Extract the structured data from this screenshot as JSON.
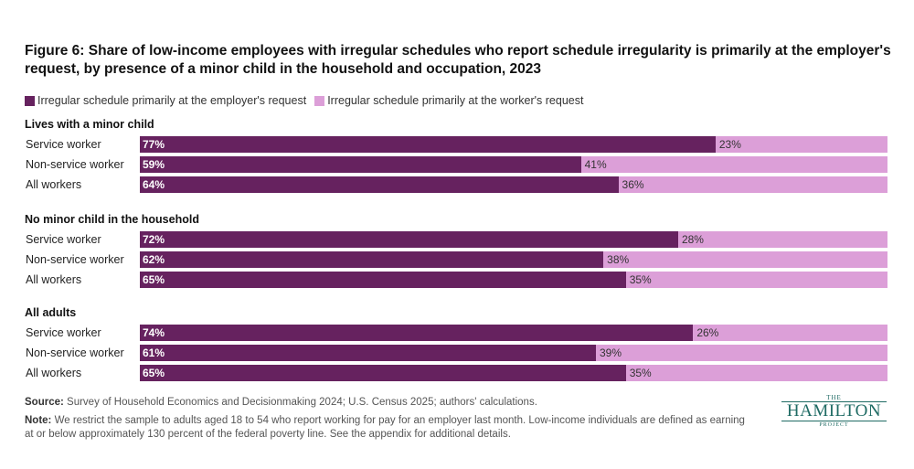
{
  "title": "Figure 6: Share of low-income employees with irregular schedules who report schedule irregularity is primarily at the employer's request, by presence of a minor child in the household and occupation, 2023",
  "legend": {
    "employer": "Irregular schedule primarily at the employer's request",
    "worker": "Irregular schedule primarily at the worker's request"
  },
  "colors": {
    "employer": "#66225f",
    "worker": "#dc9fd8"
  },
  "chart_data": {
    "type": "bar",
    "orientation": "horizontal-stacked-100",
    "series": [
      {
        "name": "Irregular schedule primarily at the employer's request"
      },
      {
        "name": "Irregular schedule primarily at the worker's request"
      }
    ],
    "groups": [
      {
        "title": "Lives with a minor child",
        "rows": [
          {
            "label": "Service worker",
            "employer": 77,
            "worker": 23,
            "employer_label": "77%",
            "worker_label": "23%"
          },
          {
            "label": "Non-service worker",
            "employer": 59,
            "worker": 41,
            "employer_label": "59%",
            "worker_label": "41%"
          },
          {
            "label": "All workers",
            "employer": 64,
            "worker": 36,
            "employer_label": "64%",
            "worker_label": "36%"
          }
        ]
      },
      {
        "title": "No minor child in the household",
        "rows": [
          {
            "label": "Service worker",
            "employer": 72,
            "worker": 28,
            "employer_label": "72%",
            "worker_label": "28%"
          },
          {
            "label": "Non-service worker",
            "employer": 62,
            "worker": 38,
            "employer_label": "62%",
            "worker_label": "38%"
          },
          {
            "label": "All workers",
            "employer": 65,
            "worker": 35,
            "employer_label": "65%",
            "worker_label": "35%"
          }
        ]
      },
      {
        "title": "All adults",
        "rows": [
          {
            "label": "Service worker",
            "employer": 74,
            "worker": 26,
            "employer_label": "74%",
            "worker_label": "26%"
          },
          {
            "label": "Non-service worker",
            "employer": 61,
            "worker": 39,
            "employer_label": "61%",
            "worker_label": "39%"
          },
          {
            "label": "All workers",
            "employer": 65,
            "worker": 35,
            "employer_label": "65%",
            "worker_label": "35%"
          }
        ]
      }
    ]
  },
  "source": {
    "label": "Source:",
    "text": " Survey of Household Economics and Decisionmaking 2024; U.S. Census 2025; authors' calculations."
  },
  "note": {
    "label": "Note:",
    "text": " We restrict the sample to adults aged 18 to 54 who report working for pay for an employer last month. Low-income individuals are defined as earning at or below approximately 130 percent of the federal poverty line. See the appendix for additional details."
  },
  "logo": {
    "the": "THE",
    "name": "HAMILTON",
    "project": "PROJECT"
  }
}
